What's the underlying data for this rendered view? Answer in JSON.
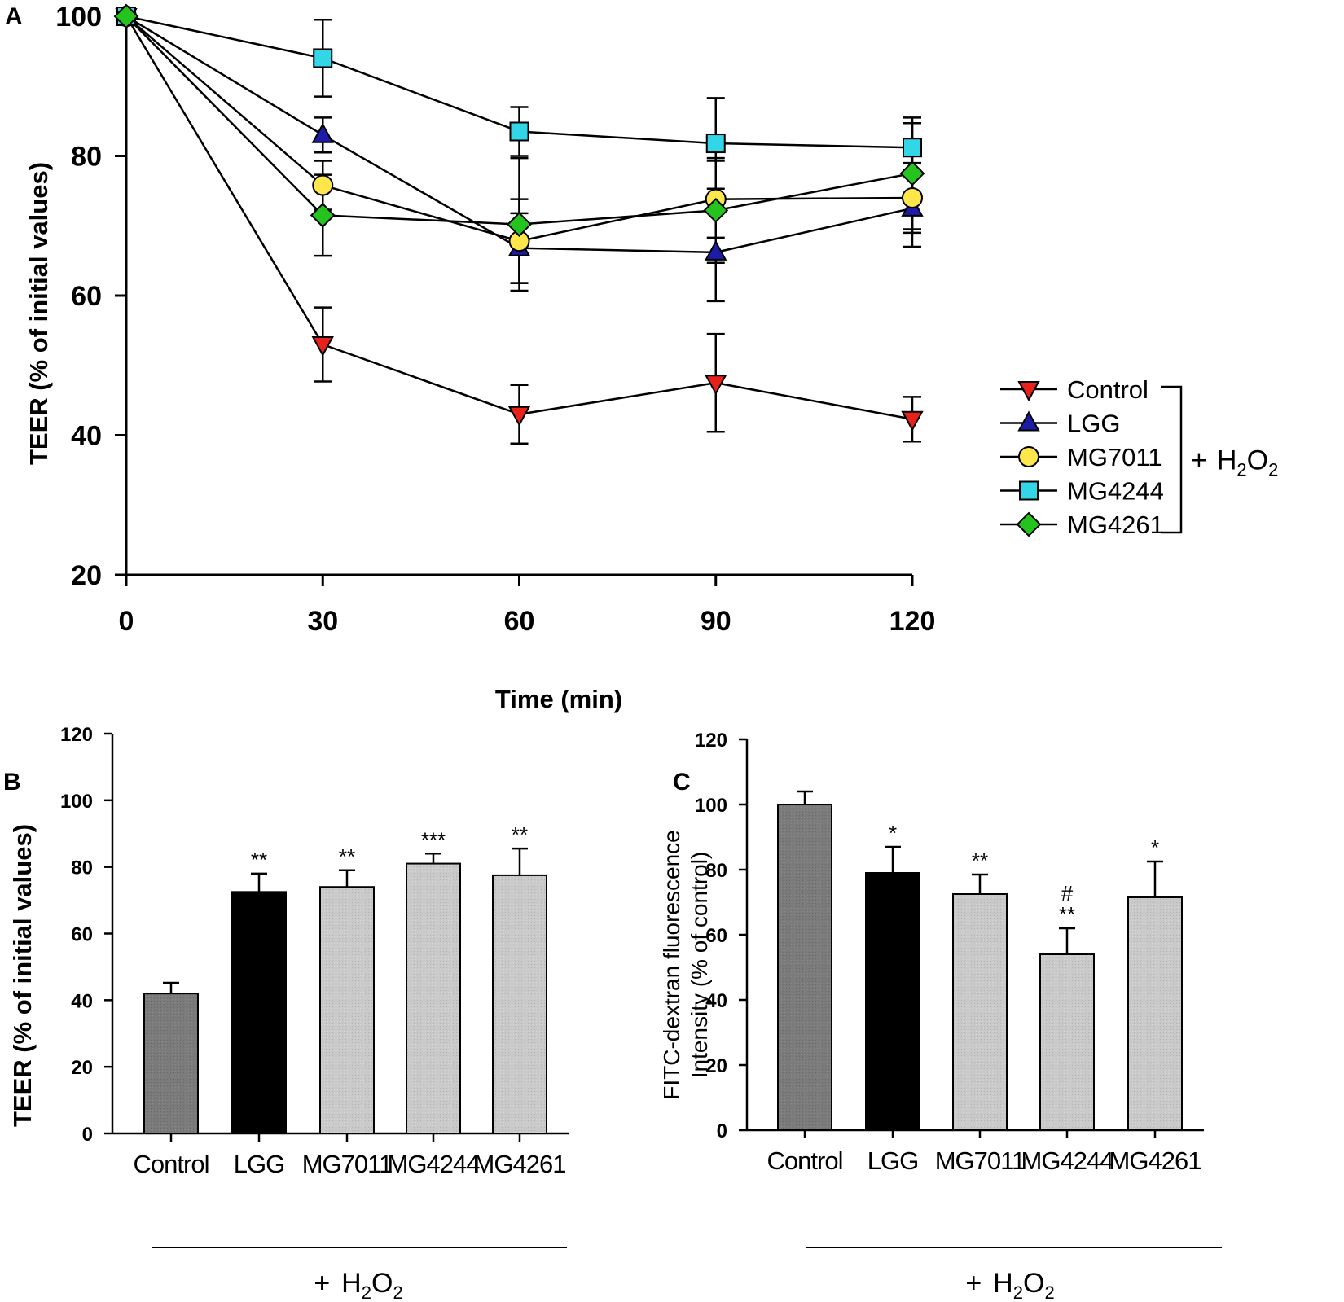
{
  "colors": {
    "control": "#e8211b",
    "lgg": "#1c1ca6",
    "mg7011": "#ffe64a",
    "mg4244": "#33d6e6",
    "mg4261": "#25c31d",
    "bar_dark": "#7a7a7a",
    "bar_black": "#000000",
    "bar_light": "#c8c8c8"
  },
  "treatment_label": {
    "plus": "+",
    "chem": "H",
    "sub1": "2",
    "mid": "O",
    "sub2": "2"
  },
  "chart_data": [
    {
      "panel": "A",
      "type": "line",
      "xlabel": "Time  (min)",
      "ylabel": "TEER (% of initial values)",
      "x": [
        0,
        30,
        60,
        90,
        120
      ],
      "xlim": [
        0,
        120
      ],
      "ylim": [
        20,
        100
      ],
      "yticks": [
        20,
        40,
        60,
        80,
        100
      ],
      "legend": [
        "Control",
        "LGG",
        "MG7011",
        "MG4244",
        "MG4261"
      ],
      "series": [
        {
          "name": "Control",
          "marker": "triangle-down",
          "color_key": "control",
          "values": [
            100,
            53,
            43,
            47.5,
            42.3
          ],
          "err": [
            0,
            5.3,
            4.2,
            7,
            3.2
          ]
        },
        {
          "name": "LGG",
          "marker": "triangle-up",
          "color_key": "lgg",
          "values": [
            100,
            83,
            66.8,
            66.2,
            72.5
          ],
          "err": [
            0,
            2.5,
            5,
            7,
            5.5
          ]
        },
        {
          "name": "MG7011",
          "marker": "circle",
          "color_key": "mg7011",
          "values": [
            100,
            75.8,
            67.8,
            73.8,
            74
          ],
          "err": [
            0,
            3.5,
            6,
            5.5,
            5
          ]
        },
        {
          "name": "MG4244",
          "marker": "square",
          "color_key": "mg4244",
          "values": [
            100,
            94,
            83.5,
            81.8,
            81.2
          ],
          "err": [
            0,
            5.5,
            3.5,
            6.5,
            3.5
          ]
        },
        {
          "name": "MG4261",
          "marker": "diamond",
          "color_key": "mg4261",
          "values": [
            100,
            71.5,
            70.2,
            72.2,
            77.5
          ],
          "err": [
            0,
            5.8,
            9.5,
            7.5,
            8
          ]
        }
      ]
    },
    {
      "panel": "B",
      "type": "bar",
      "ylabel": "TEER (% of initial values)",
      "categories": [
        "Control",
        "LGG",
        "MG7011",
        "MG4244",
        "MG4261"
      ],
      "values": [
        42,
        72.5,
        74,
        81,
        77.5
      ],
      "errors": [
        3.2,
        5.5,
        5,
        3,
        8
      ],
      "annotations": [
        "",
        "**",
        "**",
        "***",
        "**"
      ],
      "bar_color_keys": [
        "bar_dark",
        "bar_black",
        "bar_light",
        "bar_light",
        "bar_light"
      ],
      "ylim": [
        0,
        120
      ],
      "yticks": [
        0,
        20,
        40,
        60,
        80,
        100,
        120
      ]
    },
    {
      "panel": "C",
      "type": "bar",
      "ylabel_line1": "FITC-dextran fluorescence",
      "ylabel_line2": "Intensity (% of control)",
      "categories": [
        "Control",
        "LGG",
        "MG7011",
        "MG4244",
        "MG4261"
      ],
      "values": [
        100,
        79,
        72.5,
        54,
        71.5
      ],
      "errors": [
        4,
        8,
        6,
        8,
        11
      ],
      "annotations": [
        "",
        "*",
        "**",
        "**",
        "*"
      ],
      "annotations_top": [
        "",
        "",
        "",
        "#",
        ""
      ],
      "bar_color_keys": [
        "bar_dark",
        "bar_black",
        "bar_light",
        "bar_light",
        "bar_light"
      ],
      "ylim": [
        0,
        120
      ],
      "yticks": [
        0,
        20,
        40,
        60,
        80,
        100,
        120
      ]
    }
  ]
}
